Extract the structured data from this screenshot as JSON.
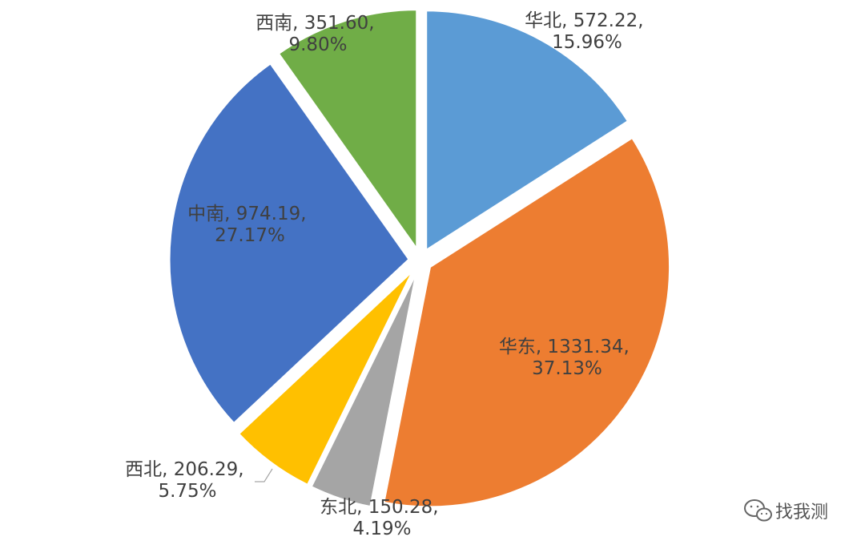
{
  "chart_data": {
    "type": "pie",
    "title": "",
    "slices": [
      {
        "label": "华北",
        "value": 572.22,
        "percent": "15.96%",
        "color": "#5B9BD5"
      },
      {
        "label": "华东",
        "value": 1331.34,
        "percent": "37.13%",
        "color": "#ED7D31"
      },
      {
        "label": "东北",
        "value": 150.28,
        "percent": "4.19%",
        "color": "#A5A5A5"
      },
      {
        "label": "西北",
        "value": 206.29,
        "percent": "5.75%",
        "color": "#FFC000"
      },
      {
        "label": "中南",
        "value": 974.19,
        "percent": "27.17%",
        "color": "#4472C4"
      },
      {
        "label": "西南",
        "value": 351.6,
        "percent": "9.80%",
        "color": "#70AD47"
      }
    ],
    "data_labels": [
      {
        "line1": "华北, 572.22,",
        "line2": "15.96%"
      },
      {
        "line1": "华东, 1331.34,",
        "line2": "37.13%"
      },
      {
        "line1": "东北, 150.28,",
        "line2": "4.19%"
      },
      {
        "line1": "西北, 206.29,",
        "line2": "5.75%"
      },
      {
        "line1": "中南, 974.19,",
        "line2": "27.17%"
      },
      {
        "line1": "西南, 351.60,",
        "line2": "9.80%"
      }
    ],
    "legend": "none"
  },
  "watermark": {
    "icon": "wechat-icon",
    "text": "找我测"
  }
}
